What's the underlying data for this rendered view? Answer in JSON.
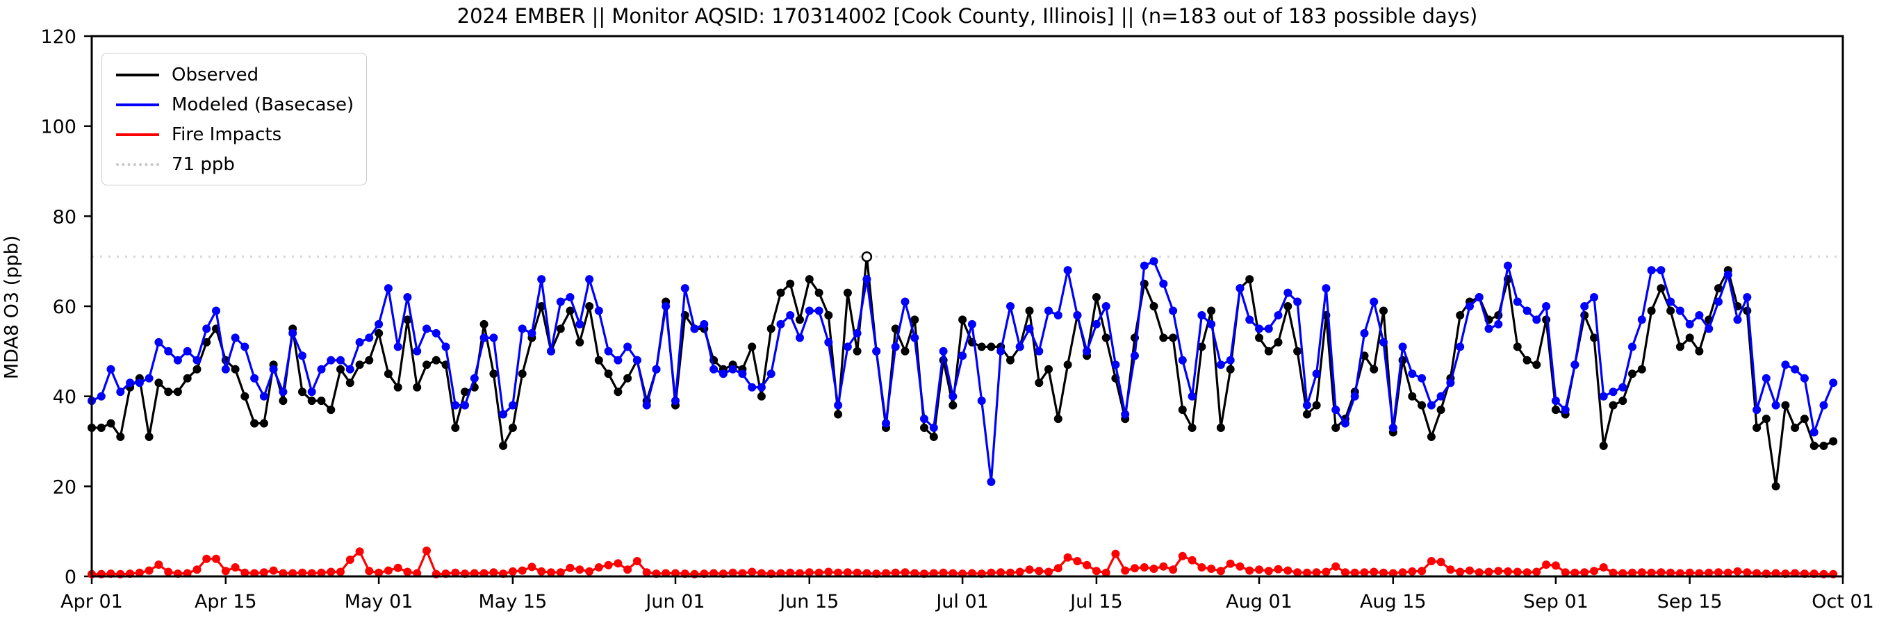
{
  "title": "2024 EMBER || Monitor AQSID: 170314002 [Cook County, Illinois] || (n=183 out of 183 possible days)",
  "chart_data": {
    "type": "line",
    "title": "2024 EMBER || Monitor AQSID: 170314002 [Cook County, Illinois] || (n=183 out of 183 possible days)",
    "xlabel": "",
    "ylabel": "MDA8 O3 (ppb)",
    "ylim": [
      0,
      120
    ],
    "y_ticks": [
      0,
      20,
      40,
      60,
      80,
      100,
      120
    ],
    "n_days": 183,
    "date_range": "Apr 01 - Sep 30, 2024",
    "x_tick_labels": [
      "Apr 01",
      "Apr 15",
      "May 01",
      "May 15",
      "Jun 01",
      "Jun 15",
      "Jul 01",
      "Jul 15",
      "Aug 01",
      "Aug 15",
      "Sep 01",
      "Sep 15",
      "Oct 01"
    ],
    "x_tick_days": [
      0,
      14,
      30,
      44,
      61,
      75,
      91,
      105,
      122,
      136,
      153,
      167,
      183
    ],
    "grid": false,
    "legend_position": "upper left",
    "reference_line": {
      "label": "71 ppb",
      "value": 71,
      "color": "#d6d6d6",
      "style": "dotted"
    },
    "legend": [
      {
        "label": "Observed",
        "color": "#000000",
        "style": "solid"
      },
      {
        "label": "Modeled (Basecase)",
        "color": "#0000ff",
        "style": "solid"
      },
      {
        "label": "Fire Impacts",
        "color": "#ff0000",
        "style": "solid"
      },
      {
        "label": "71 ppb",
        "color": "#c8c8c8",
        "style": "dotted"
      }
    ],
    "highlight": {
      "series": "Observed",
      "day_index": 81,
      "date": "Jun 21",
      "value": 71,
      "marker": "open-circle"
    },
    "series": [
      {
        "name": "Observed",
        "color": "#000000",
        "values": [
          33,
          33,
          34,
          31,
          42,
          44,
          31,
          43,
          41,
          41,
          44,
          46,
          52,
          55,
          48,
          46,
          40,
          34,
          34,
          47,
          39,
          55,
          41,
          39,
          39,
          37,
          46,
          43,
          47,
          48,
          54,
          45,
          42,
          57,
          42,
          47,
          48,
          47,
          33,
          41,
          42,
          56,
          45,
          29,
          33,
          45,
          53,
          60,
          50,
          55,
          59,
          52,
          60,
          48,
          45,
          41,
          44,
          48,
          39,
          46,
          61,
          38,
          58,
          55,
          55,
          48,
          46,
          47,
          46,
          51,
          40,
          55,
          63,
          65,
          57,
          66,
          63,
          58,
          36,
          63,
          50,
          71,
          50,
          33,
          55,
          50,
          57,
          33,
          31,
          48,
          38,
          57,
          52,
          51,
          51,
          51,
          48,
          51,
          59,
          43,
          46,
          35,
          47,
          58,
          49,
          62,
          53,
          44,
          35,
          53,
          65,
          60,
          53,
          53,
          37,
          33,
          51,
          59,
          33,
          46,
          64,
          66,
          53,
          50,
          52,
          60,
          50,
          36,
          38,
          58,
          33,
          35,
          41,
          49,
          46,
          59,
          32,
          48,
          40,
          38,
          31,
          37,
          44,
          58,
          61,
          62,
          57,
          58,
          66,
          51,
          48,
          47,
          57,
          37,
          36,
          47,
          58,
          53,
          29,
          38,
          39,
          45,
          46,
          59,
          64,
          59,
          51,
          53,
          50,
          57,
          64,
          68,
          60,
          59,
          33,
          35,
          20,
          38,
          33,
          35,
          29,
          29,
          30
        ]
      },
      {
        "name": "Modeled (Basecase)",
        "color": "#0000ff",
        "values": [
          39,
          40,
          46,
          41,
          43,
          43,
          44,
          52,
          50,
          48,
          50,
          48,
          55,
          59,
          46,
          53,
          51,
          44,
          40,
          46,
          41,
          54,
          49,
          41,
          46,
          48,
          48,
          46,
          52,
          53,
          56,
          64,
          51,
          62,
          50,
          55,
          54,
          51,
          38,
          38,
          44,
          53,
          53,
          36,
          38,
          55,
          54,
          66,
          50,
          61,
          62,
          56,
          66,
          59,
          50,
          48,
          51,
          48,
          38,
          46,
          60,
          39,
          64,
          55,
          56,
          46,
          45,
          46,
          45,
          42,
          42,
          45,
          56,
          58,
          53,
          59,
          59,
          52,
          38,
          51,
          54,
          66,
          50,
          34,
          51,
          61,
          53,
          35,
          33,
          50,
          40,
          49,
          56,
          39,
          21,
          50,
          60,
          51,
          55,
          50,
          59,
          58,
          68,
          58,
          50,
          56,
          60,
          47,
          36,
          49,
          69,
          70,
          65,
          59,
          48,
          40,
          58,
          56,
          47,
          48,
          64,
          57,
          55,
          55,
          58,
          63,
          61,
          38,
          45,
          64,
          37,
          34,
          40,
          54,
          61,
          52,
          33,
          51,
          45,
          44,
          38,
          40,
          43,
          51,
          60,
          62,
          55,
          56,
          69,
          61,
          59,
          57,
          60,
          39,
          37,
          47,
          60,
          62,
          40,
          41,
          42,
          51,
          57,
          68,
          68,
          61,
          59,
          56,
          58,
          55,
          61,
          67,
          57,
          62,
          37,
          44,
          38,
          47,
          46,
          44,
          32,
          38,
          43
        ]
      },
      {
        "name": "Fire Impacts",
        "color": "#ff0000",
        "values": [
          0.5,
          0.5,
          0.6,
          0.5,
          0.6,
          0.8,
          1.3,
          2.6,
          1.0,
          0.6,
          0.7,
          1.5,
          3.9,
          3.9,
          1.2,
          2.0,
          0.8,
          0.7,
          0.9,
          1.3,
          0.7,
          0.7,
          0.8,
          0.7,
          0.8,
          1.0,
          1.0,
          3.7,
          5.5,
          1.2,
          0.8,
          1.3,
          1.9,
          1.0,
          0.7,
          5.7,
          0.5,
          0.6,
          0.8,
          0.6,
          0.7,
          0.7,
          0.9,
          0.6,
          1.1,
          1.3,
          2.1,
          1.1,
          0.9,
          0.9,
          1.9,
          1.5,
          1.1,
          2.0,
          2.5,
          2.9,
          1.5,
          3.4,
          0.9,
          0.6,
          0.7,
          0.7,
          0.6,
          0.5,
          0.6,
          0.7,
          0.6,
          0.8,
          0.7,
          1.0,
          0.7,
          0.6,
          0.7,
          0.8,
          0.7,
          0.9,
          0.8,
          1.0,
          0.8,
          0.9,
          0.8,
          0.7,
          0.6,
          0.7,
          0.8,
          0.9,
          0.7,
          0.6,
          0.7,
          0.8,
          0.7,
          0.6,
          0.7,
          0.6,
          0.8,
          0.9,
          0.8,
          1.0,
          1.5,
          1.2,
          1.0,
          1.8,
          4.2,
          3.4,
          2.5,
          1.2,
          0.8,
          5.0,
          1.3,
          1.8,
          2.0,
          1.7,
          2.2,
          1.5,
          4.5,
          3.6,
          2.0,
          1.7,
          1.2,
          2.8,
          2.2,
          1.3,
          1.5,
          1.2,
          1.6,
          1.3,
          0.9,
          0.8,
          0.9,
          1.0,
          2.2,
          0.9,
          0.8,
          0.9,
          1.0,
          0.8,
          0.7,
          0.9,
          1.1,
          1.2,
          3.4,
          3.2,
          1.5,
          1.0,
          1.3,
          0.9,
          1.0,
          1.2,
          1.1,
          1.0,
          0.9,
          1.0,
          2.6,
          2.4,
          0.9,
          0.8,
          0.9,
          1.2,
          2.0,
          0.8,
          0.7,
          0.8,
          0.9,
          0.8,
          0.9,
          0.8,
          0.7,
          0.8,
          0.7,
          0.8,
          0.9,
          0.8,
          1.1,
          0.9,
          0.7,
          0.6,
          0.7,
          0.6,
          0.7,
          0.6,
          0.6,
          0.5,
          0.5
        ]
      }
    ]
  }
}
